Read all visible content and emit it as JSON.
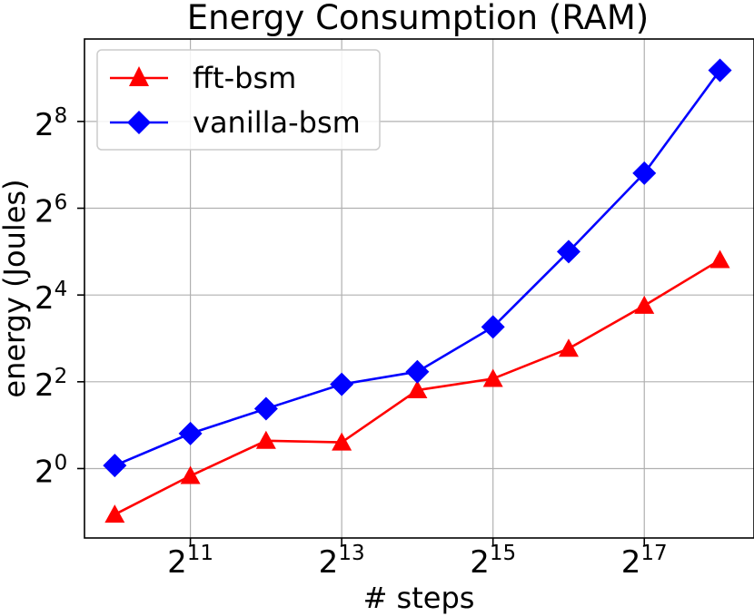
{
  "chart_data": {
    "type": "line",
    "title": "Energy Consumption (RAM)",
    "xlabel": "# steps",
    "ylabel": "energy (Joules)",
    "xscale": "log2",
    "yscale": "log2",
    "xlim_exp": [
      9.6,
      18.45
    ],
    "ylim_exp": [
      -1.6,
      9.9
    ],
    "grid": true,
    "legend_position": "top-left",
    "x": [
      1024,
      2048,
      4096,
      8192,
      16384,
      32768,
      65536,
      131072,
      262144
    ],
    "x_ticks": [
      {
        "base": "2",
        "exp": "11",
        "value_exp": 11
      },
      {
        "base": "2",
        "exp": "13",
        "value_exp": 13
      },
      {
        "base": "2",
        "exp": "15",
        "value_exp": 15
      },
      {
        "base": "2",
        "exp": "17",
        "value_exp": 17
      }
    ],
    "y_ticks": [
      {
        "base": "2",
        "exp": "0",
        "value_exp": 0
      },
      {
        "base": "2",
        "exp": "2",
        "value_exp": 2
      },
      {
        "base": "2",
        "exp": "4",
        "value_exp": 4
      },
      {
        "base": "2",
        "exp": "6",
        "value_exp": 6
      },
      {
        "base": "2",
        "exp": "8",
        "value_exp": 8
      }
    ],
    "series": [
      {
        "name": "fft-bsm",
        "color": "#ff0000",
        "marker": "triangle",
        "values": [
          0.48,
          0.89,
          1.56,
          1.52,
          3.5,
          4.2,
          6.8,
          13.5,
          28.0
        ]
      },
      {
        "name": "vanilla-bsm",
        "color": "#0000ff",
        "marker": "diamond",
        "values": [
          1.05,
          1.75,
          2.6,
          3.84,
          4.7,
          9.6,
          32.0,
          112.0,
          580.0
        ]
      }
    ]
  }
}
